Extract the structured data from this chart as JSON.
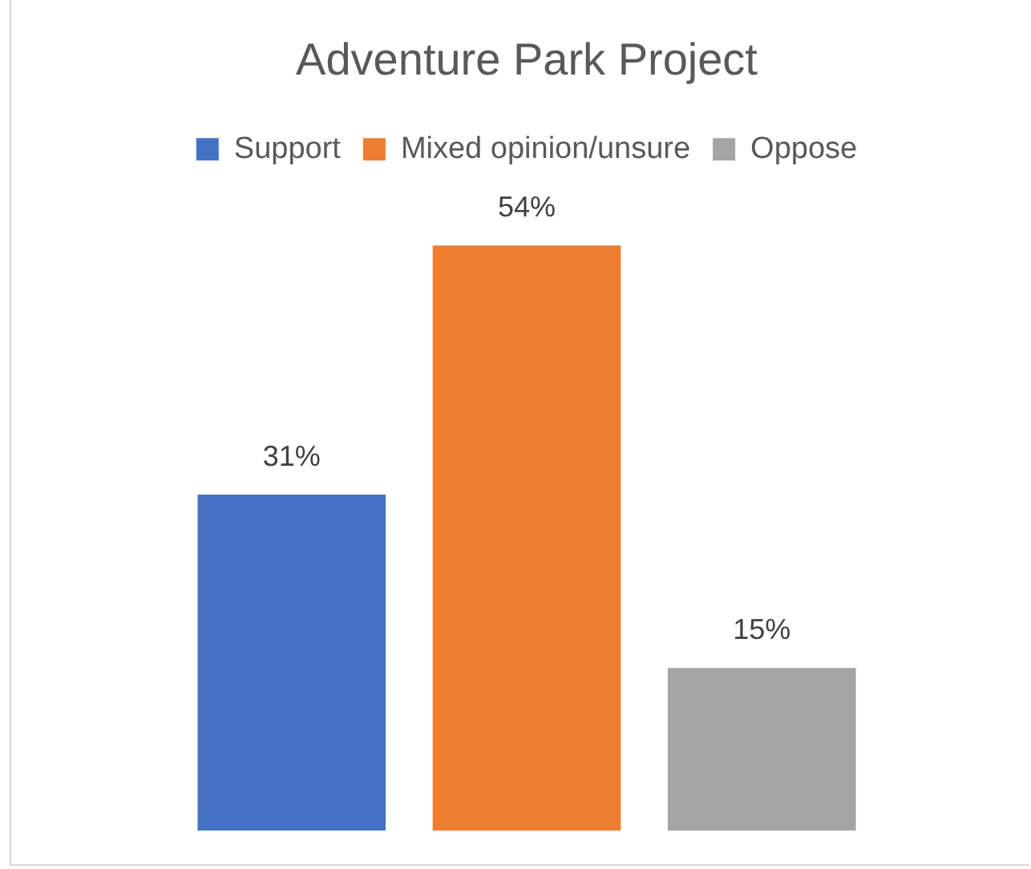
{
  "chart_data": {
    "type": "bar",
    "title": "Adventure Park Project",
    "categories": [
      null
    ],
    "series": [
      {
        "name": "Support",
        "color": "#4472c4",
        "values": [
          31
        ],
        "value_labels": [
          "31%"
        ]
      },
      {
        "name": "Mixed opinion/unsure",
        "color": "#ed7d31",
        "values": [
          54
        ],
        "value_labels": [
          "54%"
        ]
      },
      {
        "name": "Oppose",
        "color": "#a5a5a5",
        "values": [
          15
        ],
        "value_labels": [
          "15%"
        ]
      }
    ],
    "legend": "top"
  }
}
